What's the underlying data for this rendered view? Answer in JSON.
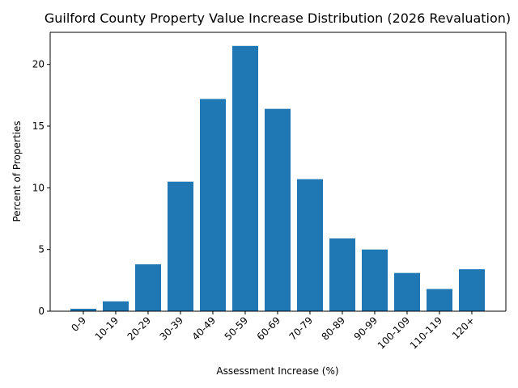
{
  "chart_data": {
    "type": "bar",
    "title": "Guilford County Property Value Increase Distribution (2026 Revaluation)",
    "xlabel": "Assessment Increase (%)",
    "ylabel": "Percent of Properties",
    "categories": [
      "0-9",
      "10-19",
      "20-29",
      "30-39",
      "40-49",
      "50-59",
      "60-69",
      "70-79",
      "80-89",
      "90-99",
      "100-109",
      "110-119",
      "120+"
    ],
    "values": [
      0.2,
      0.8,
      3.8,
      10.5,
      17.2,
      21.5,
      16.4,
      10.7,
      5.9,
      5.0,
      3.1,
      1.8,
      3.4
    ],
    "ylim": [
      0,
      22.6
    ],
    "yticks": [
      0,
      5,
      10,
      15,
      20
    ],
    "grid": false,
    "bar_color": "#1f77b4"
  }
}
